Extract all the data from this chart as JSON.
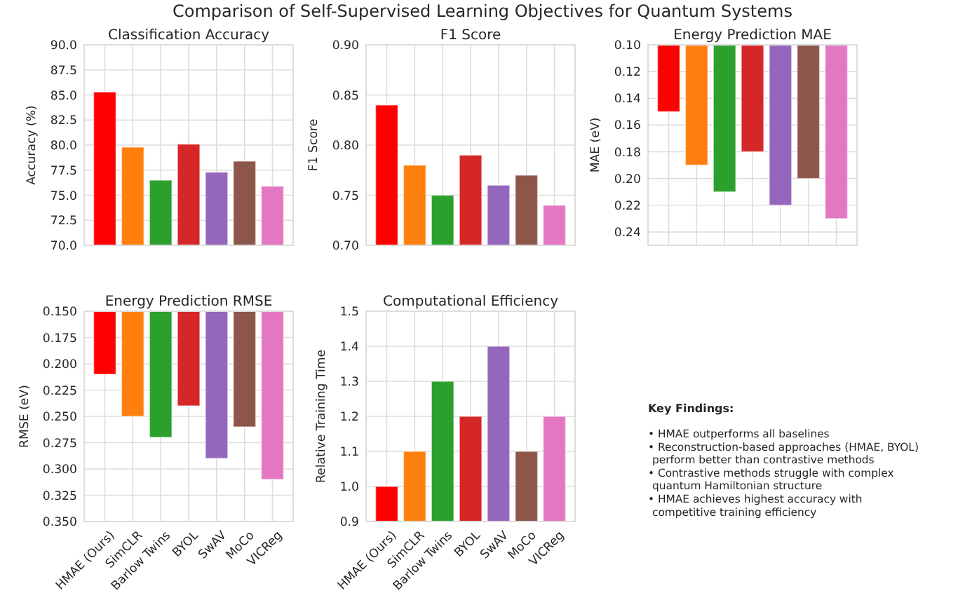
{
  "chart_data": [
    {
      "type": "bar",
      "title": "Classification Accuracy",
      "annotations": [
        "Comparison of Self-Supervised Learning Objectives for Quantum Systems"
      ],
      "ylabel": "Accuracy (%)",
      "categories": [
        null,
        null,
        null,
        null,
        null,
        null,
        null
      ],
      "values": [
        85.3,
        79.8,
        76.5,
        80.1,
        77.3,
        78.4,
        75.9
      ],
      "colors": [
        "#ff0000",
        "#ff7f0e",
        "#2ca02c",
        "#d62728",
        "#9467bd",
        "#8c564b",
        "#e377c2"
      ],
      "ylim": [
        70,
        90
      ],
      "yticks": [
        {
          "value": 70,
          "label": "70.0"
        },
        72.5,
        {
          "value": 75,
          "label": "75.0"
        },
        77.5,
        {
          "value": 80,
          "label": "80.0"
        },
        82.5,
        {
          "value": 85,
          "label": "85.0"
        },
        87.5,
        {
          "value": 90,
          "label": "90.0"
        }
      ],
      "grid": true
    },
    {
      "type": "bar",
      "title": "F1 Score",
      "ylabel": "F1 Score",
      "categories": [
        null,
        null,
        null,
        null,
        null,
        null,
        null
      ],
      "values": [
        0.84,
        0.78,
        0.75,
        0.79,
        0.76,
        0.77,
        0.74
      ],
      "colors": [
        "#ff0000",
        "#ff7f0e",
        "#2ca02c",
        "#d62728",
        "#9467bd",
        "#8c564b",
        "#e377c2"
      ],
      "ylim": [
        0.7,
        0.9
      ],
      "yticks": [
        {
          "value": 0.7,
          "label": "0.70"
        },
        0.75,
        {
          "value": 0.8,
          "label": "0.80"
        },
        0.85,
        {
          "value": 0.9,
          "label": "0.90"
        }
      ],
      "grid": true
    },
    {
      "type": "bar",
      "title": "Energy Prediction MAE",
      "ylabel": "MAE (eV)",
      "categories": [
        null,
        null,
        null,
        null,
        null,
        null,
        null
      ],
      "values": [
        0.15,
        0.19,
        0.21,
        0.18,
        0.22,
        0.2,
        0.23
      ],
      "colors": [
        "#ff0000",
        "#ff7f0e",
        "#2ca02c",
        "#d62728",
        "#9467bd",
        "#8c564b",
        "#e377c2"
      ],
      "ylim": [
        0.25,
        0.1
      ],
      "yticks": [
        {
          "value": 0.1,
          "label": "0.10"
        },
        0.12,
        0.14,
        0.16,
        0.18,
        {
          "value": 0.2,
          "label": "0.20"
        },
        0.22,
        0.24
      ],
      "grid": true
    },
    {
      "type": "bar",
      "title": "Energy Prediction RMSE",
      "ylabel": "RMSE (eV)",
      "categories": [
        "HMAE (Ours)",
        "SimCLR",
        "Barlow Twins",
        "BYOL",
        "SwAV",
        "MoCo",
        "VICReg"
      ],
      "values": [
        0.21,
        0.25,
        0.27,
        0.24,
        0.29,
        0.26,
        0.31
      ],
      "colors": [
        "#ff0000",
        "#ff7f0e",
        "#2ca02c",
        "#d62728",
        "#9467bd",
        "#8c564b",
        "#e377c2"
      ],
      "ylim": [
        0.35,
        0.15
      ],
      "yticks": [
        {
          "value": 0.15,
          "label": "0.150"
        },
        0.175,
        {
          "value": 0.2,
          "label": "0.200"
        },
        0.225,
        {
          "value": 0.25,
          "label": "0.250"
        },
        0.275,
        {
          "value": 0.3,
          "label": "0.300"
        },
        0.325,
        {
          "value": 0.35,
          "label": "0.350"
        }
      ],
      "grid": true
    },
    {
      "type": "bar",
      "title": "Computational Efficiency",
      "ylabel": "Relative Training Time",
      "categories": [
        "HMAE (Ours)",
        "SimCLR",
        "Barlow Twins",
        "BYOL",
        "SwAV",
        "MoCo",
        "VICReg"
      ],
      "values": [
        1.0,
        1.1,
        1.3,
        1.2,
        1.4,
        1.1,
        1.2
      ],
      "colors": [
        "#ff0000",
        "#ff7f0e",
        "#2ca02c",
        "#d62728",
        "#9467bd",
        "#8c564b",
        "#e377c2"
      ],
      "ylim": [
        0.9,
        1.5
      ],
      "yticks": [
        0.9,
        {
          "value": 1.0,
          "label": "1.0"
        },
        1.1,
        1.2,
        1.3,
        1.4,
        1.5
      ],
      "grid": true
    },
    {
      "type": "other",
      "title": "Key Findings:",
      "annotations": [
        "• HMAE outperforms all baselines",
        "• Reconstruction-based approaches (HMAE, BYOL)\nperform better than contrastive methods",
        "• Contrastive methods struggle with complex\nquantum Hamiltonian structure",
        "• HMAE achieves highest accuracy with\ncompetitive training efficiency"
      ]
    }
  ]
}
